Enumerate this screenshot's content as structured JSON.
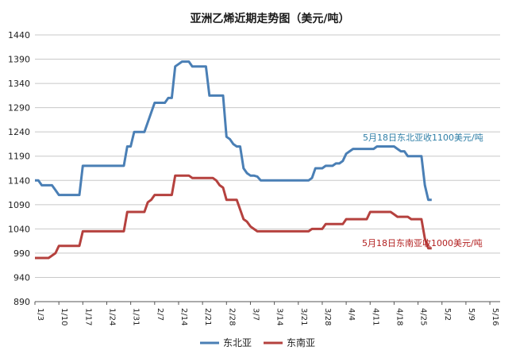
{
  "chart_data": {
    "type": "line",
    "title": "亚洲乙烯近期走势图（美元/吨）",
    "ylim": [
      890,
      1440
    ],
    "yticks": [
      890,
      940,
      990,
      1040,
      1090,
      1140,
      1190,
      1240,
      1290,
      1340,
      1390,
      1440
    ],
    "xlim": [
      "1/3",
      "5/19"
    ],
    "xtick_labels": [
      "1/3",
      "1/10",
      "1/17",
      "1/24",
      "1/31",
      "2/7",
      "2/14",
      "2/21",
      "2/28",
      "3/7",
      "3/14",
      "3/21",
      "3/28",
      "4/4",
      "4/11",
      "4/18",
      "4/25",
      "5/2",
      "5/9",
      "5/16"
    ],
    "grid": "horizontal",
    "legend_position": "bottom",
    "colors": {
      "northeast": "#4a7fb5",
      "southeast": "#b5413e"
    },
    "annotations": [
      {
        "text": "5月18日东北亚收1100美元/吨",
        "series": "东北亚"
      },
      {
        "text": "5月18日东南亚收1000美元/吨",
        "series": "东南亚"
      }
    ],
    "series": [
      {
        "name": "东北亚",
        "points": [
          [
            "1/3",
            1140
          ],
          [
            "1/4",
            1140
          ],
          [
            "1/5",
            1130
          ],
          [
            "1/6",
            1130
          ],
          [
            "1/7",
            1130
          ],
          [
            "1/8",
            1130
          ],
          [
            "1/9",
            1120
          ],
          [
            "1/10",
            1110
          ],
          [
            "1/11",
            1110
          ],
          [
            "1/12",
            1110
          ],
          [
            "1/13",
            1110
          ],
          [
            "1/14",
            1110
          ],
          [
            "1/15",
            1110
          ],
          [
            "1/16",
            1110
          ],
          [
            "1/17",
            1170
          ],
          [
            "1/18",
            1170
          ],
          [
            "1/19",
            1170
          ],
          [
            "1/20",
            1170
          ],
          [
            "1/21",
            1170
          ],
          [
            "1/22",
            1170
          ],
          [
            "1/23",
            1170
          ],
          [
            "1/24",
            1170
          ],
          [
            "1/25",
            1170
          ],
          [
            "1/26",
            1170
          ],
          [
            "1/27",
            1170
          ],
          [
            "1/28",
            1170
          ],
          [
            "1/29",
            1170
          ],
          [
            "1/30",
            1210
          ],
          [
            "1/31",
            1210
          ],
          [
            "2/1",
            1240
          ],
          [
            "2/2",
            1240
          ],
          [
            "2/3",
            1240
          ],
          [
            "2/4",
            1240
          ],
          [
            "2/5",
            1260
          ],
          [
            "2/6",
            1280
          ],
          [
            "2/7",
            1300
          ],
          [
            "2/8",
            1300
          ],
          [
            "2/9",
            1300
          ],
          [
            "2/10",
            1300
          ],
          [
            "2/11",
            1310
          ],
          [
            "2/12",
            1310
          ],
          [
            "2/13",
            1375
          ],
          [
            "2/14",
            1380
          ],
          [
            "2/15",
            1385
          ],
          [
            "2/16",
            1385
          ],
          [
            "2/17",
            1385
          ],
          [
            "2/18",
            1375
          ],
          [
            "2/19",
            1375
          ],
          [
            "2/20",
            1375
          ],
          [
            "2/21",
            1375
          ],
          [
            "2/22",
            1375
          ],
          [
            "2/23",
            1315
          ],
          [
            "2/24",
            1315
          ],
          [
            "2/25",
            1315
          ],
          [
            "2/26",
            1315
          ],
          [
            "2/27",
            1315
          ],
          [
            "2/28",
            1230
          ],
          [
            "3/1",
            1225
          ],
          [
            "3/2",
            1215
          ],
          [
            "3/3",
            1210
          ],
          [
            "3/4",
            1210
          ],
          [
            "3/5",
            1165
          ],
          [
            "3/6",
            1155
          ],
          [
            "3/7",
            1150
          ],
          [
            "3/8",
            1150
          ],
          [
            "3/9",
            1148
          ],
          [
            "3/10",
            1140
          ],
          [
            "3/11",
            1140
          ],
          [
            "3/12",
            1140
          ],
          [
            "3/13",
            1140
          ],
          [
            "3/14",
            1140
          ],
          [
            "3/15",
            1140
          ],
          [
            "3/16",
            1140
          ],
          [
            "3/17",
            1140
          ],
          [
            "3/18",
            1140
          ],
          [
            "3/19",
            1140
          ],
          [
            "3/20",
            1140
          ],
          [
            "3/21",
            1140
          ],
          [
            "3/22",
            1140
          ],
          [
            "3/23",
            1140
          ],
          [
            "3/24",
            1140
          ],
          [
            "3/25",
            1145
          ],
          [
            "3/26",
            1165
          ],
          [
            "3/27",
            1165
          ],
          [
            "3/28",
            1165
          ],
          [
            "3/29",
            1170
          ],
          [
            "3/30",
            1170
          ],
          [
            "3/31",
            1170
          ],
          [
            "4/1",
            1175
          ],
          [
            "4/2",
            1175
          ],
          [
            "4/3",
            1180
          ],
          [
            "4/4",
            1195
          ],
          [
            "4/5",
            1200
          ],
          [
            "4/6",
            1205
          ],
          [
            "4/7",
            1205
          ],
          [
            "4/8",
            1205
          ],
          [
            "4/9",
            1205
          ],
          [
            "4/10",
            1205
          ],
          [
            "4/11",
            1205
          ],
          [
            "4/12",
            1205
          ],
          [
            "4/13",
            1210
          ],
          [
            "4/14",
            1210
          ],
          [
            "4/15",
            1210
          ],
          [
            "4/16",
            1210
          ],
          [
            "4/17",
            1210
          ],
          [
            "4/18",
            1210
          ],
          [
            "4/19",
            1205
          ],
          [
            "4/20",
            1200
          ],
          [
            "4/21",
            1200
          ],
          [
            "4/22",
            1190
          ],
          [
            "4/23",
            1190
          ],
          [
            "4/24",
            1190
          ],
          [
            "4/25",
            1190
          ],
          [
            "4/26",
            1190
          ],
          [
            "4/27",
            1130
          ],
          [
            "4/28",
            1100
          ],
          [
            "4/29",
            1100
          ]
        ]
      },
      {
        "name": "东南亚",
        "points": [
          [
            "1/3",
            980
          ],
          [
            "1/4",
            980
          ],
          [
            "1/5",
            980
          ],
          [
            "1/6",
            980
          ],
          [
            "1/7",
            980
          ],
          [
            "1/8",
            985
          ],
          [
            "1/9",
            990
          ],
          [
            "1/10",
            1005
          ],
          [
            "1/11",
            1005
          ],
          [
            "1/12",
            1005
          ],
          [
            "1/13",
            1005
          ],
          [
            "1/14",
            1005
          ],
          [
            "1/15",
            1005
          ],
          [
            "1/16",
            1005
          ],
          [
            "1/17",
            1035
          ],
          [
            "1/18",
            1035
          ],
          [
            "1/19",
            1035
          ],
          [
            "1/20",
            1035
          ],
          [
            "1/21",
            1035
          ],
          [
            "1/22",
            1035
          ],
          [
            "1/23",
            1035
          ],
          [
            "1/24",
            1035
          ],
          [
            "1/25",
            1035
          ],
          [
            "1/26",
            1035
          ],
          [
            "1/27",
            1035
          ],
          [
            "1/28",
            1035
          ],
          [
            "1/29",
            1035
          ],
          [
            "1/30",
            1075
          ],
          [
            "1/31",
            1075
          ],
          [
            "2/1",
            1075
          ],
          [
            "2/2",
            1075
          ],
          [
            "2/3",
            1075
          ],
          [
            "2/4",
            1075
          ],
          [
            "2/5",
            1095
          ],
          [
            "2/6",
            1100
          ],
          [
            "2/7",
            1110
          ],
          [
            "2/8",
            1110
          ],
          [
            "2/9",
            1110
          ],
          [
            "2/10",
            1110
          ],
          [
            "2/11",
            1110
          ],
          [
            "2/12",
            1110
          ],
          [
            "2/13",
            1150
          ],
          [
            "2/14",
            1150
          ],
          [
            "2/15",
            1150
          ],
          [
            "2/16",
            1150
          ],
          [
            "2/17",
            1150
          ],
          [
            "2/18",
            1145
          ],
          [
            "2/19",
            1145
          ],
          [
            "2/20",
            1145
          ],
          [
            "2/21",
            1145
          ],
          [
            "2/22",
            1145
          ],
          [
            "2/23",
            1145
          ],
          [
            "2/24",
            1145
          ],
          [
            "2/25",
            1140
          ],
          [
            "2/26",
            1130
          ],
          [
            "2/27",
            1125
          ],
          [
            "2/28",
            1100
          ],
          [
            "3/1",
            1100
          ],
          [
            "3/2",
            1100
          ],
          [
            "3/3",
            1100
          ],
          [
            "3/4",
            1080
          ],
          [
            "3/5",
            1060
          ],
          [
            "3/6",
            1055
          ],
          [
            "3/7",
            1045
          ],
          [
            "3/8",
            1040
          ],
          [
            "3/9",
            1035
          ],
          [
            "3/10",
            1035
          ],
          [
            "3/11",
            1035
          ],
          [
            "3/12",
            1035
          ],
          [
            "3/13",
            1035
          ],
          [
            "3/14",
            1035
          ],
          [
            "3/15",
            1035
          ],
          [
            "3/16",
            1035
          ],
          [
            "3/17",
            1035
          ],
          [
            "3/18",
            1035
          ],
          [
            "3/19",
            1035
          ],
          [
            "3/20",
            1035
          ],
          [
            "3/21",
            1035
          ],
          [
            "3/22",
            1035
          ],
          [
            "3/23",
            1035
          ],
          [
            "3/24",
            1035
          ],
          [
            "3/25",
            1040
          ],
          [
            "3/26",
            1040
          ],
          [
            "3/27",
            1040
          ],
          [
            "3/28",
            1040
          ],
          [
            "3/29",
            1050
          ],
          [
            "3/30",
            1050
          ],
          [
            "3/31",
            1050
          ],
          [
            "4/1",
            1050
          ],
          [
            "4/2",
            1050
          ],
          [
            "4/3",
            1050
          ],
          [
            "4/4",
            1060
          ],
          [
            "4/5",
            1060
          ],
          [
            "4/6",
            1060
          ],
          [
            "4/7",
            1060
          ],
          [
            "4/8",
            1060
          ],
          [
            "4/9",
            1060
          ],
          [
            "4/10",
            1060
          ],
          [
            "4/11",
            1075
          ],
          [
            "4/12",
            1075
          ],
          [
            "4/13",
            1075
          ],
          [
            "4/14",
            1075
          ],
          [
            "4/15",
            1075
          ],
          [
            "4/16",
            1075
          ],
          [
            "4/17",
            1075
          ],
          [
            "4/18",
            1070
          ],
          [
            "4/19",
            1065
          ],
          [
            "4/20",
            1065
          ],
          [
            "4/21",
            1065
          ],
          [
            "4/22",
            1065
          ],
          [
            "4/23",
            1060
          ],
          [
            "4/24",
            1060
          ],
          [
            "4/25",
            1060
          ],
          [
            "4/26",
            1060
          ],
          [
            "4/27",
            1020
          ],
          [
            "4/28",
            1000
          ],
          [
            "4/29",
            1000
          ]
        ]
      }
    ]
  }
}
